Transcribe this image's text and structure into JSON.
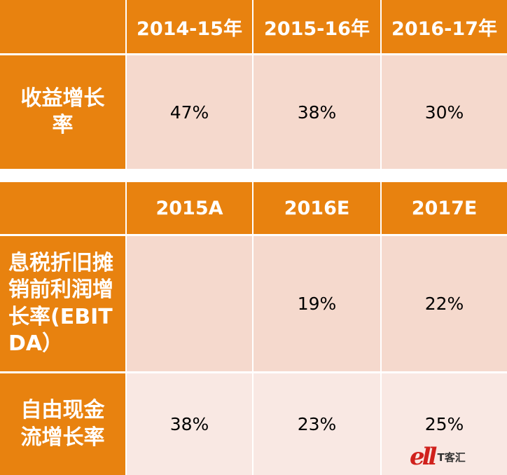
{
  "table1": {
    "headers": [
      "",
      "2014-15年",
      "2015-16年",
      "2016-17年"
    ],
    "rows": [
      {
        "label": "收益增长率",
        "values": [
          "47%",
          "38%",
          "30%"
        ]
      }
    ]
  },
  "table2": {
    "headers": [
      "",
      "2015A",
      "2016E",
      "2017E"
    ],
    "rows": [
      {
        "label": "息税折旧摊销前利润增长率(EBITDA）",
        "values": [
          "",
          "19%",
          "22%"
        ]
      },
      {
        "label": "自由现金流增长率",
        "values": [
          "38%",
          "23%",
          "25%"
        ]
      }
    ]
  },
  "colors": {
    "header_orange": "#e8820f",
    "row_pink": "#f5d9cd",
    "row_light_pink": "#f9e8e3"
  },
  "watermark": {
    "logo": "ell",
    "text": "T客汇"
  }
}
